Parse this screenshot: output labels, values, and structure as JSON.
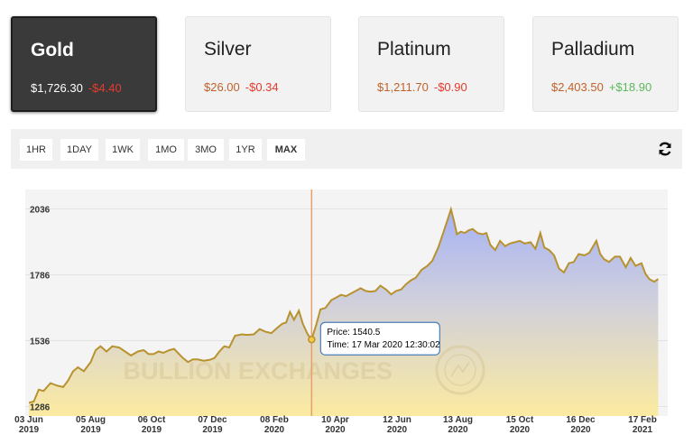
{
  "metals": [
    {
      "name": "Gold",
      "price": "$1,726.30",
      "change": "-$4.40",
      "direction": "down",
      "selected": true
    },
    {
      "name": "Silver",
      "price": "$26.00",
      "change": "-$0.34",
      "direction": "down",
      "selected": false
    },
    {
      "name": "Platinum",
      "price": "$1,211.70",
      "change": "-$0.90",
      "direction": "down",
      "selected": false
    },
    {
      "name": "Palladium",
      "price": "$2,403.50",
      "change": "+$18.90",
      "direction": "up",
      "selected": false
    }
  ],
  "ranges": [
    "1HR",
    "1DAY",
    "1WK",
    "1MO",
    "3MO",
    "1YR",
    "MAX"
  ],
  "active_range": "MAX",
  "refresh_icon": "refresh-icon",
  "colors": {
    "line": "#b8922f",
    "negative": "#e63a2e",
    "positive": "#5cb85c",
    "crosshair": "#e8a06a"
  },
  "watermark": "BULLION EXCHANGES",
  "tooltip": {
    "price_label": "Price: 1540.5",
    "time_label": "Time: 17 Mar 2020 12:30:02"
  },
  "chart_data": {
    "type": "area",
    "ylim": [
      1250,
      2110
    ],
    "y_ticks": [
      1286,
      1536,
      1786,
      2036
    ],
    "x_tick_labels": [
      {
        "date": "2019-06-03",
        "label": [
          "03 Jun",
          "2019"
        ]
      },
      {
        "date": "2019-08-05",
        "label": [
          "05 Aug",
          "2019"
        ]
      },
      {
        "date": "2019-10-06",
        "label": [
          "06 Oct",
          "2019"
        ]
      },
      {
        "date": "2019-12-07",
        "label": [
          "07 Dec",
          "2019"
        ]
      },
      {
        "date": "2020-02-08",
        "label": [
          "08 Feb",
          "2020"
        ]
      },
      {
        "date": "2020-04-10",
        "label": [
          "10 Apr",
          "2020"
        ]
      },
      {
        "date": "2020-06-12",
        "label": [
          "12 Jun",
          "2020"
        ]
      },
      {
        "date": "2020-08-13",
        "label": [
          "13 Aug",
          "2020"
        ]
      },
      {
        "date": "2020-10-15",
        "label": [
          "15 Oct",
          "2020"
        ]
      },
      {
        "date": "2020-12-16",
        "label": [
          "16 Dec",
          "2020"
        ]
      },
      {
        "date": "2021-02-17",
        "label": [
          "17 Feb",
          "2021"
        ]
      }
    ],
    "hover_point": {
      "date": "2020-03-17",
      "value": 1540.5
    },
    "series": [
      {
        "x": [
          "2019-06-03",
          "2019-06-08",
          "2019-06-13",
          "2019-06-18",
          "2019-06-25",
          "2019-07-02",
          "2019-07-08",
          "2019-07-13",
          "2019-07-18",
          "2019-07-23",
          "2019-07-29",
          "2019-08-05",
          "2019-08-10",
          "2019-08-15",
          "2019-08-21",
          "2019-08-27",
          "2019-09-03",
          "2019-09-09",
          "2019-09-15",
          "2019-09-22",
          "2019-09-28",
          "2019-10-03",
          "2019-10-08",
          "2019-10-13",
          "2019-10-18",
          "2019-10-24",
          "2019-10-29",
          "2019-11-03",
          "2019-11-07",
          "2019-11-12",
          "2019-11-17",
          "2019-11-22",
          "2019-11-28",
          "2019-12-04",
          "2019-12-09",
          "2019-12-14",
          "2019-12-19",
          "2019-12-24",
          "2019-12-30",
          "2020-01-06",
          "2020-01-11",
          "2020-01-18",
          "2020-01-24",
          "2020-01-30",
          "2020-02-05",
          "2020-02-11",
          "2020-02-16",
          "2020-02-20",
          "2020-02-24",
          "2020-02-28",
          "2020-03-04",
          "2020-03-08",
          "2020-03-13",
          "2020-03-17",
          "2020-03-22",
          "2020-03-26",
          "2020-03-31",
          "2020-04-06",
          "2020-04-11",
          "2020-04-16",
          "2020-04-21",
          "2020-04-26",
          "2020-05-01",
          "2020-05-06",
          "2020-05-11",
          "2020-05-16",
          "2020-05-21",
          "2020-05-26",
          "2020-06-01",
          "2020-06-06",
          "2020-06-11",
          "2020-06-16",
          "2020-06-21",
          "2020-06-26",
          "2020-07-01",
          "2020-07-07",
          "2020-07-13",
          "2020-07-18",
          "2020-07-24",
          "2020-07-30",
          "2020-08-06",
          "2020-08-09",
          "2020-08-12",
          "2020-08-16",
          "2020-08-20",
          "2020-08-24",
          "2020-08-28",
          "2020-09-02",
          "2020-09-07",
          "2020-09-11",
          "2020-09-15",
          "2020-09-20",
          "2020-09-25",
          "2020-09-30",
          "2020-10-05",
          "2020-10-10",
          "2020-10-15",
          "2020-10-20",
          "2020-10-26",
          "2020-10-31",
          "2020-11-05",
          "2020-11-09",
          "2020-11-14",
          "2020-11-19",
          "2020-11-24",
          "2020-11-29",
          "2020-12-04",
          "2020-12-09",
          "2020-12-14",
          "2020-12-20",
          "2020-12-25",
          "2021-01-01",
          "2021-01-05",
          "2021-01-09",
          "2021-01-14",
          "2021-01-20",
          "2021-01-25",
          "2021-01-31",
          "2021-02-05",
          "2021-02-10",
          "2021-02-16",
          "2021-02-20",
          "2021-02-24",
          "2021-03-01",
          "2021-03-05"
        ],
        "values": [
          1300,
          1305,
          1350,
          1345,
          1375,
          1365,
          1360,
          1385,
          1420,
          1435,
          1420,
          1455,
          1500,
          1515,
          1495,
          1515,
          1510,
          1495,
          1480,
          1495,
          1500,
          1485,
          1485,
          1495,
          1490,
          1500,
          1505,
          1485,
          1470,
          1455,
          1465,
          1465,
          1460,
          1463,
          1470,
          1495,
          1515,
          1510,
          1555,
          1560,
          1558,
          1560,
          1580,
          1570,
          1565,
          1585,
          1600,
          1605,
          1645,
          1615,
          1650,
          1600,
          1560,
          1540,
          1600,
          1655,
          1660,
          1690,
          1700,
          1710,
          1705,
          1715,
          1725,
          1735,
          1725,
          1722,
          1725,
          1745,
          1730,
          1712,
          1725,
          1730,
          1750,
          1765,
          1775,
          1805,
          1820,
          1840,
          1890,
          1955,
          2035,
          1990,
          1940,
          1950,
          1945,
          1955,
          1960,
          1945,
          1940,
          1945,
          1900,
          1880,
          1915,
          1895,
          1905,
          1910,
          1915,
          1905,
          1910,
          1885,
          1945,
          1890,
          1880,
          1860,
          1810,
          1795,
          1830,
          1835,
          1865,
          1860,
          1870,
          1915,
          1865,
          1845,
          1835,
          1855,
          1855,
          1815,
          1850,
          1820,
          1830,
          1790,
          1770,
          1760,
          1770
        ]
      }
    ]
  }
}
